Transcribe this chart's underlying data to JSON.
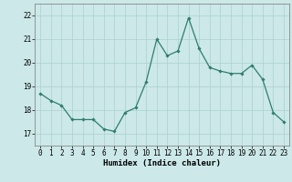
{
  "x": [
    0,
    1,
    2,
    3,
    4,
    5,
    6,
    7,
    8,
    9,
    10,
    11,
    12,
    13,
    14,
    15,
    16,
    17,
    18,
    19,
    20,
    21,
    22,
    23
  ],
  "y": [
    18.7,
    18.4,
    18.2,
    17.6,
    17.6,
    17.6,
    17.2,
    17.1,
    17.9,
    18.1,
    19.2,
    21.0,
    20.3,
    20.5,
    21.9,
    20.6,
    19.8,
    19.65,
    19.55,
    19.55,
    19.9,
    19.3,
    17.9,
    17.5
  ],
  "line_color": "#2e7d6e",
  "marker": "D",
  "markersize": 1.8,
  "linewidth": 0.9,
  "xlabel": "Humidex (Indice chaleur)",
  "ylim": [
    16.5,
    22.5
  ],
  "xlim": [
    -0.5,
    23.5
  ],
  "yticks": [
    17,
    18,
    19,
    20,
    21,
    22
  ],
  "xticks": [
    0,
    1,
    2,
    3,
    4,
    5,
    6,
    7,
    8,
    9,
    10,
    11,
    12,
    13,
    14,
    15,
    16,
    17,
    18,
    19,
    20,
    21,
    22,
    23
  ],
  "background_color": "#cce8e8",
  "grid_color": "#aad0d0",
  "tick_fontsize": 5.5,
  "xlabel_fontsize": 6.5,
  "xlabel_fontweight": "bold",
  "spine_color": "#888888"
}
